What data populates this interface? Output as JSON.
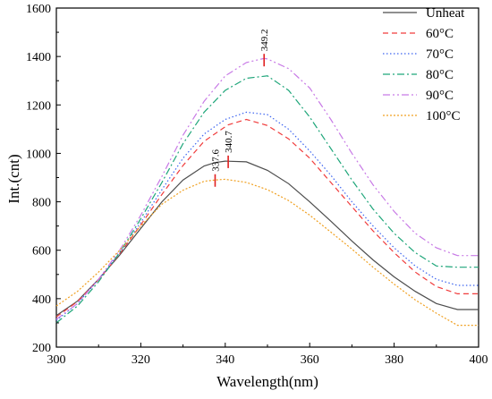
{
  "chart_data": {
    "type": "line",
    "xlabel": "Wavelength(nm)",
    "ylabel": "Int.(cnt)",
    "xlim": [
      300,
      400
    ],
    "ylim": [
      200,
      1600
    ],
    "xticks": [
      300,
      320,
      340,
      360,
      380,
      400
    ],
    "yticks": [
      200,
      400,
      600,
      800,
      1000,
      1200,
      1400,
      1600
    ],
    "grid": false,
    "legend_position": "top-right",
    "series": [
      {
        "name": "Unheat",
        "color": "#4d4d4d",
        "dash": "solid",
        "points": [
          [
            300,
            330
          ],
          [
            305,
            390
          ],
          [
            310,
            480
          ],
          [
            315,
            580
          ],
          [
            320,
            690
          ],
          [
            325,
            800
          ],
          [
            330,
            890
          ],
          [
            335,
            948
          ],
          [
            337.6,
            962
          ],
          [
            340,
            968
          ],
          [
            345,
            965
          ],
          [
            350,
            930
          ],
          [
            355,
            875
          ],
          [
            360,
            800
          ],
          [
            365,
            720
          ],
          [
            370,
            638
          ],
          [
            375,
            560
          ],
          [
            380,
            490
          ],
          [
            385,
            430
          ],
          [
            390,
            380
          ],
          [
            395,
            355
          ],
          [
            400,
            355
          ]
        ]
      },
      {
        "name": "60°C",
        "color": "#f03c3c",
        "dash": "dashed",
        "points": [
          [
            300,
            325
          ],
          [
            305,
            388
          ],
          [
            310,
            478
          ],
          [
            315,
            585
          ],
          [
            320,
            705
          ],
          [
            325,
            830
          ],
          [
            330,
            950
          ],
          [
            335,
            1050
          ],
          [
            340,
            1110
          ],
          [
            340.7,
            1118
          ],
          [
            345,
            1140
          ],
          [
            350,
            1115
          ],
          [
            355,
            1060
          ],
          [
            360,
            980
          ],
          [
            365,
            880
          ],
          [
            370,
            780
          ],
          [
            375,
            680
          ],
          [
            380,
            590
          ],
          [
            385,
            510
          ],
          [
            390,
            450
          ],
          [
            395,
            420
          ],
          [
            400,
            420
          ]
        ]
      },
      {
        "name": "70°C",
        "color": "#3c64f0",
        "dash": "dotted",
        "points": [
          [
            300,
            310
          ],
          [
            305,
            380
          ],
          [
            310,
            480
          ],
          [
            315,
            590
          ],
          [
            320,
            715
          ],
          [
            325,
            850
          ],
          [
            330,
            980
          ],
          [
            335,
            1080
          ],
          [
            340,
            1140
          ],
          [
            345,
            1170
          ],
          [
            350,
            1160
          ],
          [
            355,
            1100
          ],
          [
            360,
            1010
          ],
          [
            365,
            910
          ],
          [
            370,
            800
          ],
          [
            375,
            700
          ],
          [
            380,
            610
          ],
          [
            385,
            535
          ],
          [
            390,
            480
          ],
          [
            395,
            455
          ],
          [
            400,
            455
          ]
        ]
      },
      {
        "name": "80°C",
        "color": "#1fa67a",
        "dash": "dashdot",
        "points": [
          [
            300,
            300
          ],
          [
            305,
            370
          ],
          [
            310,
            470
          ],
          [
            315,
            590
          ],
          [
            320,
            730
          ],
          [
            325,
            880
          ],
          [
            330,
            1040
          ],
          [
            335,
            1170
          ],
          [
            340,
            1260
          ],
          [
            345,
            1310
          ],
          [
            350,
            1320
          ],
          [
            355,
            1260
          ],
          [
            360,
            1150
          ],
          [
            365,
            1020
          ],
          [
            370,
            890
          ],
          [
            375,
            770
          ],
          [
            380,
            670
          ],
          [
            385,
            590
          ],
          [
            390,
            535
          ],
          [
            395,
            530
          ],
          [
            400,
            530
          ]
        ]
      },
      {
        "name": "90°C",
        "color": "#c87ae6",
        "dash": "dashdotdot",
        "points": [
          [
            300,
            315
          ],
          [
            305,
            380
          ],
          [
            310,
            480
          ],
          [
            315,
            600
          ],
          [
            320,
            745
          ],
          [
            325,
            905
          ],
          [
            330,
            1075
          ],
          [
            335,
            1215
          ],
          [
            340,
            1320
          ],
          [
            345,
            1375
          ],
          [
            349.2,
            1392
          ],
          [
            350,
            1390
          ],
          [
            355,
            1350
          ],
          [
            360,
            1270
          ],
          [
            365,
            1140
          ],
          [
            370,
            1000
          ],
          [
            375,
            870
          ],
          [
            380,
            760
          ],
          [
            385,
            670
          ],
          [
            390,
            610
          ],
          [
            395,
            578
          ],
          [
            400,
            578
          ]
        ]
      },
      {
        "name": "100°C",
        "color": "#f0a020",
        "dash": "shortdot",
        "points": [
          [
            300,
            370
          ],
          [
            305,
            430
          ],
          [
            310,
            510
          ],
          [
            315,
            600
          ],
          [
            320,
            700
          ],
          [
            325,
            790
          ],
          [
            330,
            848
          ],
          [
            335,
            885
          ],
          [
            337.6,
            890
          ],
          [
            340,
            893
          ],
          [
            345,
            880
          ],
          [
            350,
            850
          ],
          [
            355,
            805
          ],
          [
            360,
            745
          ],
          [
            365,
            675
          ],
          [
            370,
            605
          ],
          [
            375,
            530
          ],
          [
            380,
            460
          ],
          [
            385,
            395
          ],
          [
            390,
            340
          ],
          [
            395,
            290
          ],
          [
            400,
            290
          ]
        ]
      }
    ],
    "annotations": [
      {
        "label": "337.6",
        "x": 337.6,
        "y": 888
      },
      {
        "label": "340.7",
        "x": 340.7,
        "y": 965
      },
      {
        "label": "349.2",
        "x": 349.2,
        "y": 1385
      }
    ],
    "marker_color": "#e02020"
  }
}
